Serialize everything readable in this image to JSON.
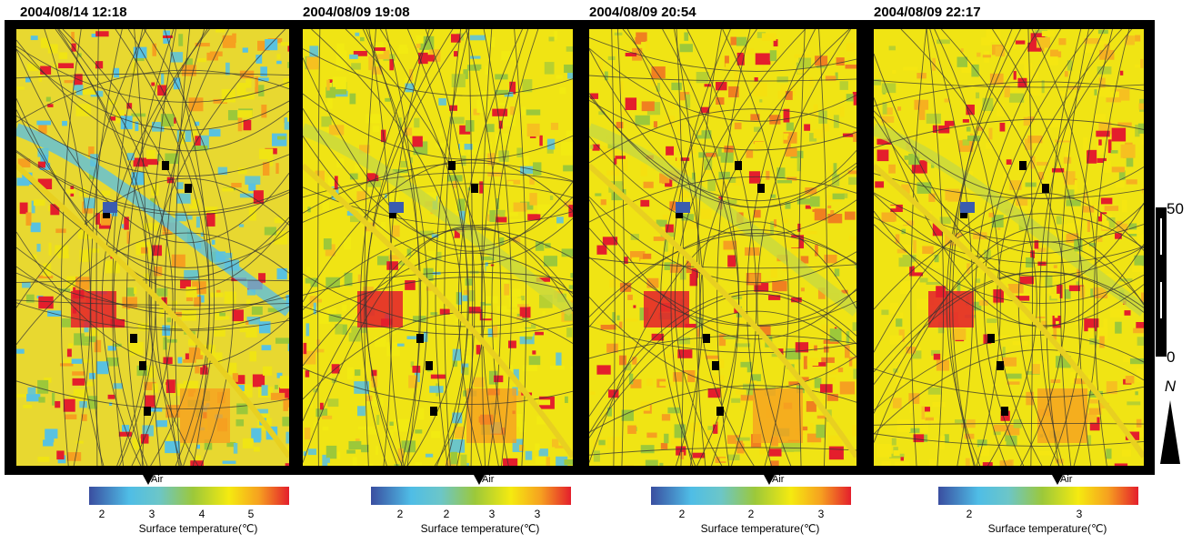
{
  "panels": [
    {
      "title": "2004/08/14 12:18",
      "air_label": "Air",
      "colorbar_ticks": [
        "2",
        "3",
        "4",
        "5"
      ],
      "colorbar_label": "Surface temperature(℃)"
    },
    {
      "title": "2004/08/09 19:08",
      "air_label": "Air",
      "colorbar_ticks": [
        "2",
        "2",
        "3",
        "3"
      ],
      "colorbar_label": "Surface temperature(℃)"
    },
    {
      "title": "2004/08/09 20:54",
      "air_label": "Air",
      "colorbar_ticks": [
        "2",
        "2",
        "3"
      ],
      "colorbar_label": "Surface temperature(℃)"
    },
    {
      "title": "2004/08/09 22:17",
      "air_label": "Air",
      "colorbar_ticks": [
        "2",
        "3"
      ],
      "colorbar_label": "Surface temperature(℃)"
    }
  ],
  "scale": {
    "top_label": "50",
    "bottom_label": "0"
  },
  "north_label": "N"
}
